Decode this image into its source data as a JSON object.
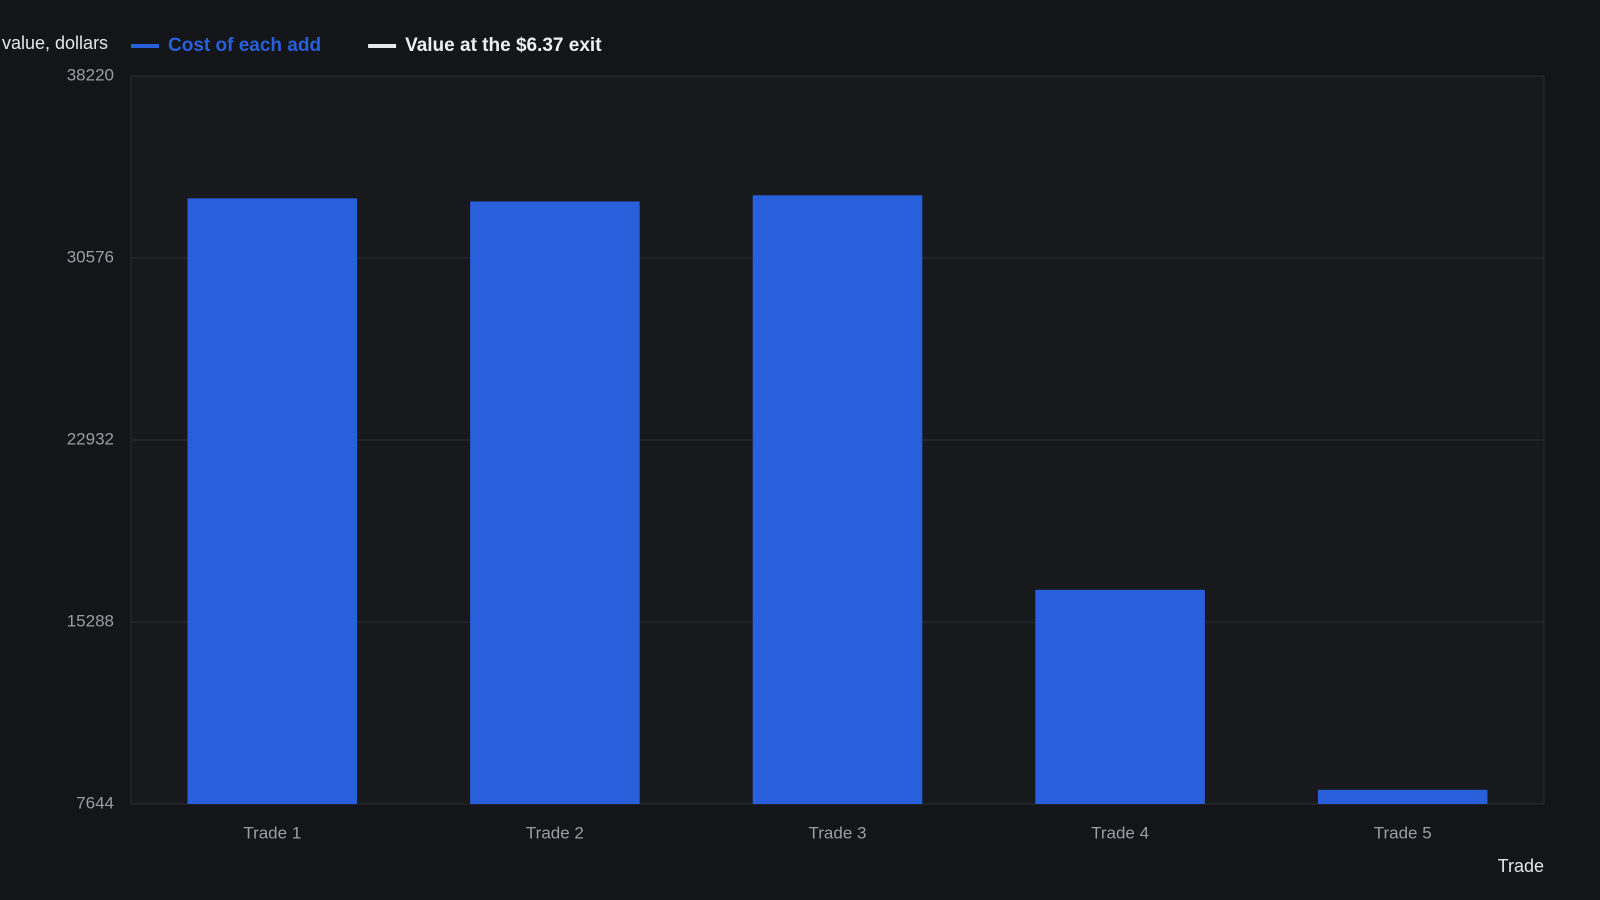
{
  "chart_data": {
    "type": "bar",
    "y_label": "value, dollars",
    "x_label": "Trade",
    "categories": [
      "Trade 1",
      "Trade 2",
      "Trade 3",
      "Trade 4",
      "Trade 5"
    ],
    "series": [
      {
        "name": "Cost of each add",
        "color": "#2860dc",
        "values": [
          33080,
          32950,
          33210,
          16640,
          8240
        ]
      },
      {
        "name": "Value at the $6.37 exit",
        "color": "#e8e8e8",
        "values": [
          null,
          null,
          null,
          null,
          null
        ]
      }
    ],
    "ylim": [
      7644,
      38220
    ],
    "yticks": [
      7644,
      15288,
      22932,
      30576,
      38220
    ],
    "grid": true
  }
}
